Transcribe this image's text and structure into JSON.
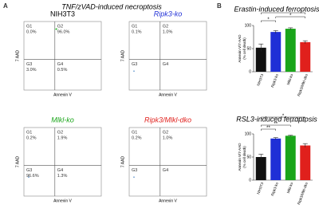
{
  "figure": {
    "label": "A",
    "title": "TNF/zVAD-induced necroptosis",
    "xlabel": "Annexin V",
    "ylabel": "7 AAD",
    "plots": [
      {
        "name": "NIH3T3",
        "color": "#000000",
        "quadrants": [
          [
            "G1",
            "0.0%"
          ],
          [
            "G2",
            "96.0%"
          ],
          [
            "G3",
            "3.0%"
          ],
          [
            "G4",
            "0.5%"
          ]
        ]
      },
      {
        "name": "Ripk3-ko",
        "color": "#1f2fd6",
        "quadrants": [
          [
            "G1",
            "0.1%"
          ],
          [
            "G2",
            "1.0%"
          ],
          [
            "G3"
          ],
          [
            "G4"
          ]
        ]
      },
      {
        "name": "Mlkl-ko",
        "color": "#1aa51a",
        "quadrants": [
          [
            "G1",
            "0.2%"
          ],
          [
            "G2",
            "1.9%"
          ],
          [
            "G3",
            "96.6%"
          ],
          [
            "G4",
            "1.3%"
          ]
        ]
      },
      {
        "name": "Ripk3/Mlkl-dko",
        "color": "#e0201c",
        "quadrants": [
          [
            "G1",
            "0.2%"
          ],
          [
            "G2",
            "1.0%"
          ],
          [
            "G3"
          ],
          [
            "G4"
          ]
        ]
      }
    ]
  },
  "panel_label": "B",
  "chart_data": [
    {
      "type": "bar",
      "title": "Erastin-induced ferroptosis",
      "ylabel": [
        "Annexin V/7-AAD",
        "(% cell death)"
      ],
      "categories": [
        "NIH3T3",
        "Ripk3-ko",
        "Mlkl-ko",
        "Ripk3/Mlkl-dko"
      ],
      "colors": [
        "#111111",
        "#1f2fd6",
        "#1aa51a",
        "#e0201c"
      ],
      "values": [
        52,
        86,
        93,
        64
      ],
      "errors": [
        8,
        3,
        2,
        3
      ],
      "ylim": [
        0,
        100
      ],
      "yticks": [
        0,
        50,
        100
      ],
      "brackets": [
        {
          "from": 0,
          "to": 1,
          "label": "*"
        },
        {
          "from": 1,
          "to": 3,
          "label": "*"
        },
        {
          "from": 0,
          "to": 3,
          "label": "*"
        }
      ]
    },
    {
      "type": "bar",
      "title": "RSL3-induced ferroptosis",
      "ylabel": [
        "Annexin V/7-AAD",
        "(% cell death)"
      ],
      "categories": [
        "NIH3T3",
        "Ripk3-ko",
        "Mlkl-ko",
        "Ripk3/Mlkl-dko"
      ],
      "colors": [
        "#111111",
        "#1f2fd6",
        "#1aa51a",
        "#e0201c"
      ],
      "values": [
        50,
        90,
        96,
        75
      ],
      "errors": [
        6,
        2,
        1,
        4
      ],
      "ylim": [
        0,
        100
      ],
      "yticks": [
        0,
        50,
        100
      ],
      "brackets": [
        {
          "from": 0,
          "to": 1,
          "label": "**"
        },
        {
          "from": 0,
          "to": 2,
          "label": "**"
        },
        {
          "from": 2,
          "to": 3,
          "label": "*"
        },
        {
          "from": 0,
          "to": 3,
          "label": "*"
        }
      ]
    }
  ]
}
